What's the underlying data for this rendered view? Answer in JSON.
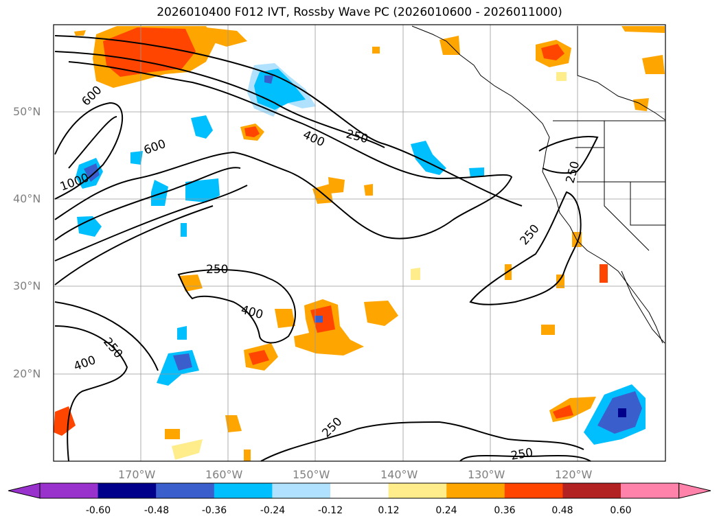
{
  "title": "2026010400 F012 IVT, Rossby Wave PC (2026010600 - 2026011000)",
  "latitude_labels": [
    "50°N",
    "40°N",
    "30°N",
    "20°N"
  ],
  "longitude_labels": [
    "170°W",
    "160°W",
    "150°W",
    "140°W",
    "130°W",
    "120°W"
  ],
  "contour_labels": [
    "1000",
    "600",
    "600",
    "400",
    "250",
    "250",
    "250",
    "250",
    "400",
    "250",
    "400",
    "250",
    "250"
  ],
  "colorbar": {
    "ticks": [
      "-0.60",
      "-0.48",
      "-0.36",
      "-0.24",
      "-0.12",
      "0.12",
      "0.24",
      "0.36",
      "0.48",
      "0.60"
    ],
    "colors": [
      "#9932cc",
      "#00008b",
      "#3a5fcd",
      "#00bfff",
      "#b0e2ff",
      "#ffffff",
      "#ffec8b",
      "#ffa500",
      "#ff4500",
      "#b22222",
      "#ff82ab"
    ]
  }
}
